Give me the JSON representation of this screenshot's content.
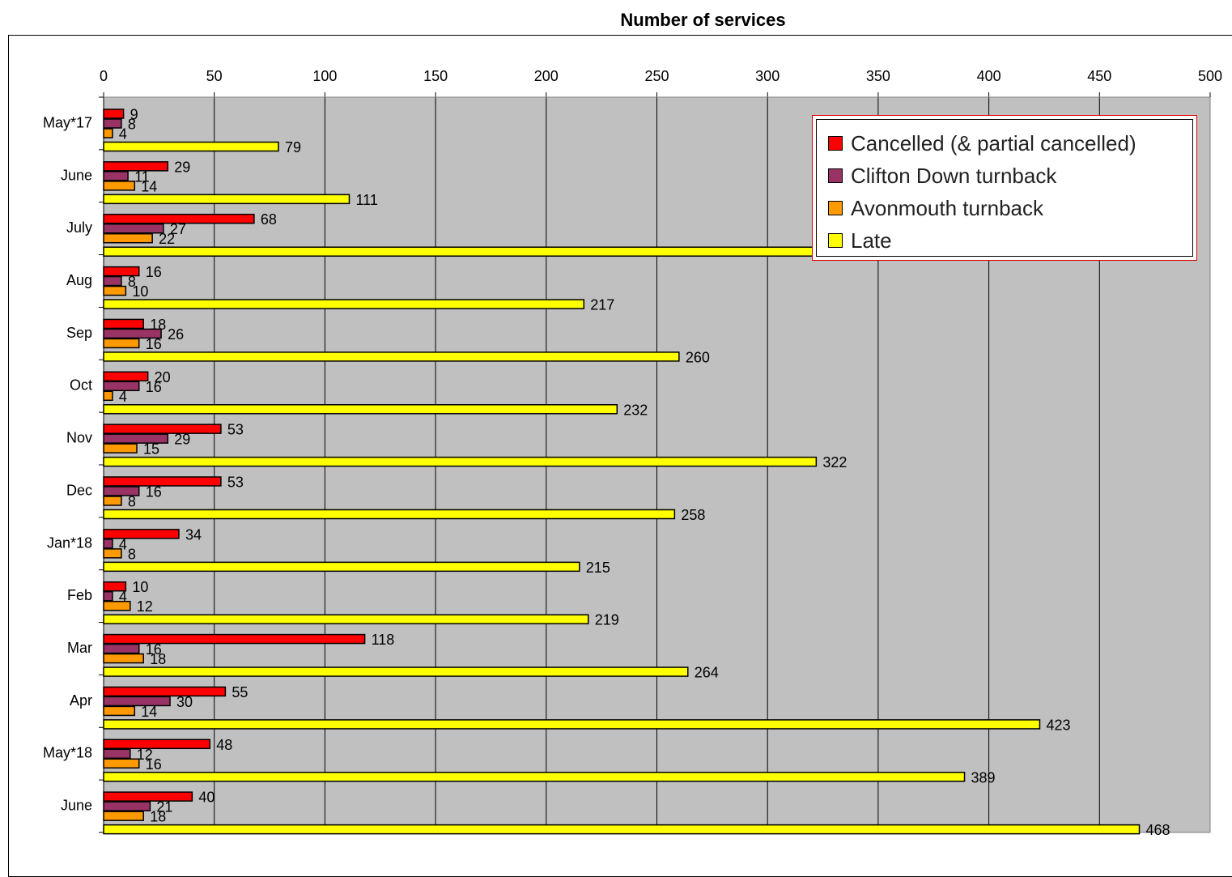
{
  "chart_data": {
    "type": "bar",
    "orientation": "horizontal",
    "title": "Number of services",
    "xlim": [
      0,
      500
    ],
    "xticks": [
      0,
      50,
      100,
      150,
      200,
      250,
      300,
      350,
      400,
      450,
      500
    ],
    "grid": true,
    "legend_position": "top-right",
    "categories": [
      "May*17",
      "June",
      "July",
      "Aug",
      "Sep",
      "Oct",
      "Nov",
      "Dec",
      "Jan*18",
      "Feb",
      "Mar",
      "Apr",
      "May*18",
      "June"
    ],
    "series": [
      {
        "name": "Cancelled (& partial cancelled)",
        "color": "#ff0000",
        "values": [
          9,
          29,
          68,
          16,
          18,
          20,
          53,
          53,
          34,
          10,
          118,
          55,
          48,
          40
        ]
      },
      {
        "name": "Clifton Down turnback",
        "color": "#993366",
        "values": [
          8,
          11,
          27,
          8,
          26,
          16,
          29,
          16,
          4,
          4,
          16,
          30,
          12,
          21
        ]
      },
      {
        "name": "Avonmouth turnback",
        "color": "#ff9900",
        "values": [
          4,
          14,
          22,
          10,
          16,
          4,
          15,
          8,
          8,
          12,
          18,
          14,
          16,
          18
        ]
      },
      {
        "name": "Late",
        "color": "#ffff00",
        "values": [
          79,
          111,
          373,
          217,
          260,
          232,
          322,
          258,
          215,
          219,
          264,
          423,
          389,
          468
        ]
      }
    ],
    "plot_background": "#c0c0c0"
  }
}
